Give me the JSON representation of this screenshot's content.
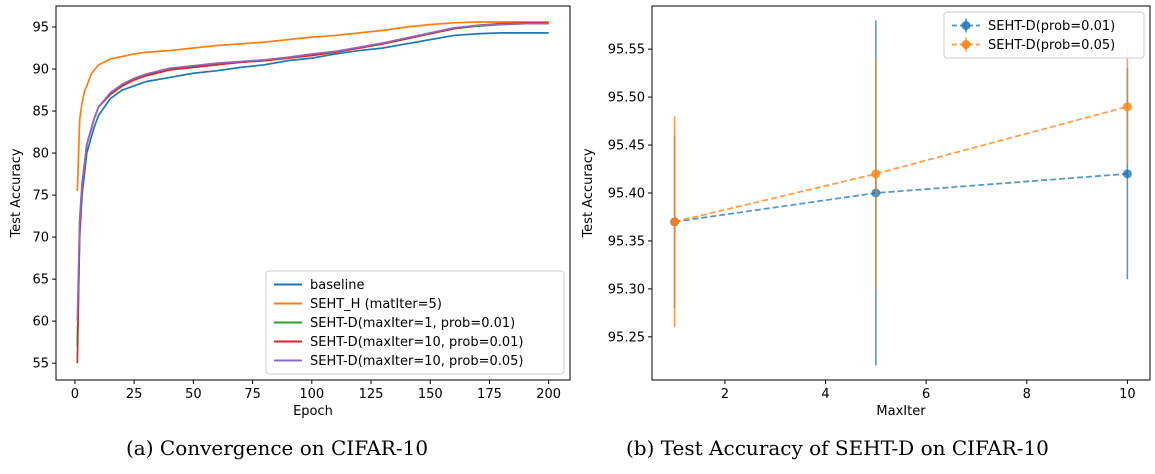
{
  "captions": {
    "left": "(a) Convergence on CIFAR-10",
    "right": "(b) Test Accuracy of SEHT-D on CIFAR-10"
  },
  "chart_data": [
    {
      "type": "line",
      "xlabel": "Epoch",
      "ylabel": "Test Accuracy",
      "xlim": [
        -8,
        209
      ],
      "ylim": [
        53,
        97.5
      ],
      "xticks": [
        0,
        25,
        50,
        75,
        100,
        125,
        150,
        175,
        200
      ],
      "yticks": [
        55,
        60,
        65,
        70,
        75,
        80,
        85,
        90,
        95
      ],
      "legend": "lower-right",
      "grid": false,
      "series": [
        {
          "name": "baseline",
          "color": "#1f77b4",
          "x": [
            1,
            2,
            3,
            5,
            8,
            10,
            15,
            20,
            25,
            30,
            40,
            50,
            60,
            70,
            80,
            90,
            100,
            110,
            120,
            130,
            140,
            150,
            160,
            170,
            180,
            190,
            200
          ],
          "y": [
            57,
            70,
            75,
            80,
            83,
            84.5,
            86.5,
            87.5,
            88,
            88.5,
            89,
            89.5,
            89.8,
            90.2,
            90.5,
            91,
            91.3,
            91.8,
            92.2,
            92.5,
            93,
            93.5,
            94,
            94.2,
            94.3,
            94.3,
            94.3
          ]
        },
        {
          "name": "SEHT_H (matIter=5)",
          "color": "#ff7f0e",
          "x": [
            1,
            2,
            3,
            4,
            5,
            7,
            10,
            15,
            20,
            25,
            30,
            40,
            50,
            60,
            70,
            80,
            90,
            100,
            110,
            120,
            130,
            140,
            150,
            160,
            170,
            180,
            190,
            200
          ],
          "y": [
            75.5,
            84,
            86,
            87.3,
            88,
            89.5,
            90.5,
            91.2,
            91.5,
            91.8,
            92,
            92.2,
            92.5,
            92.8,
            93,
            93.2,
            93.5,
            93.8,
            94,
            94.3,
            94.6,
            95,
            95.3,
            95.5,
            95.6,
            95.6,
            95.6,
            95.6
          ]
        },
        {
          "name": "SEHT-D(maxIter=1, prob=0.01)",
          "color": "#2ca02c",
          "x": [
            1,
            2,
            3,
            5,
            8,
            10,
            15,
            20,
            25,
            30,
            40,
            50,
            60,
            70,
            80,
            90,
            100,
            110,
            120,
            130,
            140,
            150,
            160,
            170,
            180,
            190,
            200
          ],
          "y": [
            57,
            72,
            76,
            81,
            84,
            85.5,
            87,
            88,
            88.8,
            89.3,
            90,
            90.3,
            90.6,
            90.8,
            91,
            91.3,
            91.7,
            92,
            92.5,
            93,
            93.6,
            94.2,
            94.8,
            95.1,
            95.3,
            95.4,
            95.4
          ]
        },
        {
          "name": "SEHT-D(maxIter=10, prob=0.01)",
          "color": "#d62728",
          "x": [
            1,
            2,
            3,
            5,
            8,
            10,
            15,
            20,
            25,
            30,
            40,
            50,
            60,
            70,
            80,
            90,
            100,
            110,
            120,
            130,
            140,
            150,
            160,
            170,
            180,
            190,
            200
          ],
          "y": [
            55,
            71,
            76,
            81,
            84,
            85.5,
            87,
            88,
            88.7,
            89.2,
            89.9,
            90.2,
            90.5,
            90.8,
            91,
            91.3,
            91.6,
            92,
            92.5,
            93,
            93.6,
            94.2,
            94.8,
            95.2,
            95.4,
            95.5,
            95.5
          ]
        },
        {
          "name": "SEHT-D(maxIter=10, prob=0.05)",
          "color": "#9467bd",
          "x": [
            1,
            2,
            3,
            5,
            8,
            10,
            15,
            20,
            25,
            30,
            40,
            50,
            60,
            70,
            80,
            90,
            100,
            110,
            120,
            130,
            140,
            150,
            160,
            170,
            180,
            190,
            200
          ],
          "y": [
            60,
            72,
            76.5,
            81,
            84,
            85.5,
            87.2,
            88.2,
            88.9,
            89.4,
            90.1,
            90.4,
            90.7,
            90.9,
            91.1,
            91.4,
            91.8,
            92.1,
            92.6,
            93.1,
            93.7,
            94.3,
            94.9,
            95.2,
            95.3,
            95.4,
            95.4
          ]
        }
      ]
    },
    {
      "type": "line",
      "xlabel": "MaxIter",
      "ylabel": "Test Accuracy",
      "xlim": [
        0.55,
        10.45
      ],
      "ylim": [
        95.205,
        95.595
      ],
      "xticks": [
        2,
        4,
        6,
        8,
        10
      ],
      "yticks": [
        95.25,
        95.3,
        95.35,
        95.4,
        95.45,
        95.5,
        95.55
      ],
      "ytick_labels": [
        "95.25",
        "95.30",
        "95.35",
        "95.40",
        "95.45",
        "95.50",
        "95.55"
      ],
      "legend": "top-right",
      "grid": false,
      "errorbars": true,
      "series": [
        {
          "name": "SEHT-D(prob=0.01)",
          "color": "#1f77b4",
          "x": [
            1,
            5,
            10
          ],
          "y": [
            95.37,
            95.4,
            95.42
          ],
          "yerr": [
            0.09,
            0.18,
            0.11
          ]
        },
        {
          "name": "SEHT-D(prob=0.05)",
          "color": "#ff7f0e",
          "x": [
            1,
            5,
            10
          ],
          "y": [
            95.37,
            95.42,
            95.49
          ],
          "yerr": [
            0.11,
            0.12,
            0.06
          ]
        }
      ]
    }
  ]
}
